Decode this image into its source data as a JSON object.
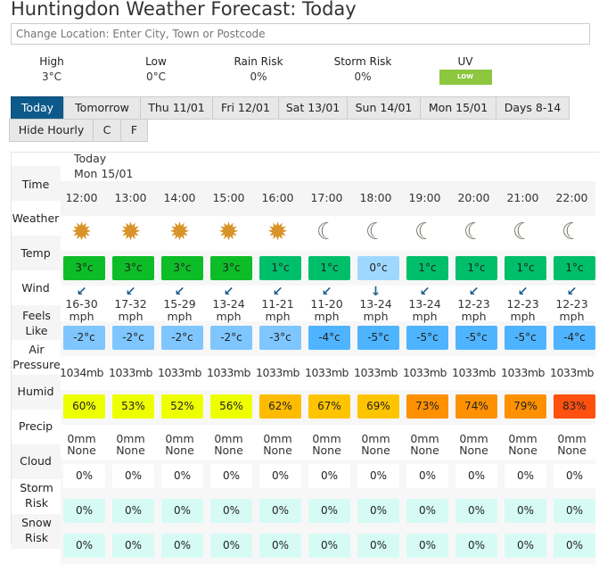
{
  "title": "Huntingdon Weather Forecast: Today",
  "search": {
    "placeholder": "Change Location: Enter City, Town or Postcode"
  },
  "summary": [
    {
      "label": "High",
      "value": "3°C"
    },
    {
      "label": "Low",
      "value": "0°C"
    },
    {
      "label": "Rain Risk",
      "value": "0%"
    },
    {
      "label": "Storm Risk",
      "value": "0%"
    }
  ],
  "uv": {
    "label": "UV",
    "value": "LOW",
    "color": "#8dc63f"
  },
  "tabs": [
    "Today",
    "Tomorrow",
    "Thu 11/01",
    "Fri 12/01",
    "Sat 13/01",
    "Sun 14/01",
    "Mon 15/01",
    "Days 8-14"
  ],
  "active_tab": "Today",
  "options": [
    "Hide Hourly",
    "C",
    "F"
  ],
  "table": {
    "day_header": [
      "Today",
      "Mon 15/01"
    ],
    "row_labels": {
      "time": "Time",
      "weather": "Weather",
      "temp": "Temp",
      "wind": "Wind",
      "feels": "Feels Like",
      "pressure": "Air Pressure",
      "humid": "Humid",
      "precip": "Precip",
      "cloud": "Cloud",
      "storm": "Storm Risk",
      "snow": "Snow Risk"
    },
    "hours": [
      {
        "time": "12:00",
        "weather": "sun-icon",
        "temp": "3°c",
        "temp_color": "#0dbd27",
        "wind_arrow": "↙",
        "wind": "16-30",
        "wind_unit": "mph",
        "feels": "-2°c",
        "feels_color": "#7fc6ff",
        "pressure": "1034mb",
        "humid": "60%",
        "humid_color": "#eeff00",
        "precip": "0mm",
        "precip_type": "None",
        "cloud": "0%",
        "storm": "0%",
        "snow": "0%"
      },
      {
        "time": "13:00",
        "weather": "sun-icon",
        "temp": "3°c",
        "temp_color": "#0dbd27",
        "wind_arrow": "↙",
        "wind": "17-32",
        "wind_unit": "mph",
        "feels": "-2°c",
        "feels_color": "#7fc6ff",
        "pressure": "1033mb",
        "humid": "53%",
        "humid_color": "#eeff00",
        "precip": "0mm",
        "precip_type": "None",
        "cloud": "0%",
        "storm": "0%",
        "snow": "0%"
      },
      {
        "time": "14:00",
        "weather": "sun-icon",
        "temp": "3°c",
        "temp_color": "#0dbd27",
        "wind_arrow": "↙",
        "wind": "15-29",
        "wind_unit": "mph",
        "feels": "-2°c",
        "feels_color": "#7fc6ff",
        "pressure": "1033mb",
        "humid": "52%",
        "humid_color": "#eeff00",
        "precip": "0mm",
        "precip_type": "None",
        "cloud": "0%",
        "storm": "0%",
        "snow": "0%"
      },
      {
        "time": "15:00",
        "weather": "sun-icon",
        "temp": "3°c",
        "temp_color": "#0dbd27",
        "wind_arrow": "↙",
        "wind": "13-24",
        "wind_unit": "mph",
        "feels": "-2°c",
        "feels_color": "#7fc6ff",
        "pressure": "1033mb",
        "humid": "56%",
        "humid_color": "#eeff00",
        "precip": "0mm",
        "precip_type": "None",
        "cloud": "0%",
        "storm": "0%",
        "snow": "0%"
      },
      {
        "time": "16:00",
        "weather": "sun-icon",
        "temp": "1°c",
        "temp_color": "#00bf6a",
        "wind_arrow": "↙",
        "wind": "11-21",
        "wind_unit": "mph",
        "feels": "-3°c",
        "feels_color": "#7fc6ff",
        "pressure": "1033mb",
        "humid": "62%",
        "humid_color": "#ffbb00",
        "precip": "0mm",
        "precip_type": "None",
        "cloud": "0%",
        "storm": "0%",
        "snow": "0%"
      },
      {
        "time": "17:00",
        "weather": "moon-icon",
        "temp": "1°c",
        "temp_color": "#00bf6a",
        "wind_arrow": "↙",
        "wind": "11-20",
        "wind_unit": "mph",
        "feels": "-4°c",
        "feels_color": "#4fb4ff",
        "pressure": "1033mb",
        "humid": "67%",
        "humid_color": "#ffc400",
        "precip": "0mm",
        "precip_type": "None",
        "cloud": "0%",
        "storm": "0%",
        "snow": "0%"
      },
      {
        "time": "18:00",
        "weather": "moon-icon",
        "temp": "0°c",
        "temp_color": "#9fd8ff",
        "wind_arrow": "↓",
        "wind": "13-24",
        "wind_unit": "mph",
        "feels": "-5°c",
        "feels_color": "#4fb4ff",
        "pressure": "1033mb",
        "humid": "69%",
        "humid_color": "#ffc400",
        "precip": "0mm",
        "precip_type": "None",
        "cloud": "0%",
        "storm": "0%",
        "snow": "0%"
      },
      {
        "time": "19:00",
        "weather": "moon-icon",
        "temp": "1°c",
        "temp_color": "#00bf6a",
        "wind_arrow": "↙",
        "wind": "13-24",
        "wind_unit": "mph",
        "feels": "-5°c",
        "feels_color": "#4fb4ff",
        "pressure": "1033mb",
        "humid": "73%",
        "humid_color": "#ff9000",
        "precip": "0mm",
        "precip_type": "None",
        "cloud": "0%",
        "storm": "0%",
        "snow": "0%"
      },
      {
        "time": "20:00",
        "weather": "moon-icon",
        "temp": "1°c",
        "temp_color": "#00bf6a",
        "wind_arrow": "↙",
        "wind": "12-23",
        "wind_unit": "mph",
        "feels": "-5°c",
        "feels_color": "#4fb4ff",
        "pressure": "1033mb",
        "humid": "74%",
        "humid_color": "#ff9000",
        "precip": "0mm",
        "precip_type": "None",
        "cloud": "0%",
        "storm": "0%",
        "snow": "0%"
      },
      {
        "time": "21:00",
        "weather": "moon-icon",
        "temp": "1°c",
        "temp_color": "#00bf6a",
        "wind_arrow": "↙",
        "wind": "12-23",
        "wind_unit": "mph",
        "feels": "-5°c",
        "feels_color": "#4fb4ff",
        "pressure": "1033mb",
        "humid": "79%",
        "humid_color": "#ff9000",
        "precip": "0mm",
        "precip_type": "None",
        "cloud": "0%",
        "storm": "0%",
        "snow": "0%"
      },
      {
        "time": "22:00",
        "weather": "moon-icon",
        "temp": "1°c",
        "temp_color": "#00bf6a",
        "wind_arrow": "↙",
        "wind": "12-23",
        "wind_unit": "mph",
        "feels": "-4°c",
        "feels_color": "#4fb4ff",
        "pressure": "1033mb",
        "humid": "83%",
        "humid_color": "#ff5010",
        "precip": "0mm",
        "precip_type": "None",
        "cloud": "0%",
        "storm": "0%",
        "snow": "0%"
      }
    ],
    "colors": {
      "cloud_box": "#ffffff",
      "storm_box": "#d6fbf5",
      "snow_box": "#d6fbf5",
      "sun": "#d8942a",
      "moon": "#707868",
      "wind_arrow": "#1b5e8c"
    }
  }
}
